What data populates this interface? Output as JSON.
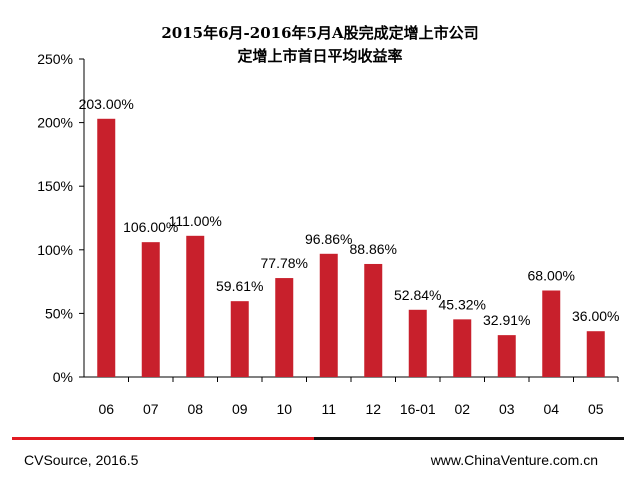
{
  "chart_data": {
    "type": "bar",
    "title": "2015年6月-2016年5月A股完成定增上市公司",
    "subtitle": "定增上市首日平均收益率",
    "categories": [
      "06",
      "07",
      "08",
      "09",
      "10",
      "11",
      "12",
      "16-01",
      "02",
      "03",
      "04",
      "05"
    ],
    "values": [
      203.0,
      106.0,
      111.0,
      59.61,
      77.78,
      96.86,
      88.86,
      52.84,
      45.32,
      32.91,
      68.0,
      36.0
    ],
    "data_labels": [
      "203.00%",
      "106.00%",
      "111.00%",
      "59.61%",
      "77.78%",
      "96.86%",
      "88.86%",
      "52.84%",
      "45.32%",
      "32.91%",
      "68.00%",
      "36.00%"
    ],
    "y_ticks": [
      0,
      50,
      100,
      150,
      200,
      250
    ],
    "y_tick_labels": [
      "0%",
      "50%",
      "100%",
      "150%",
      "200%",
      "250%"
    ],
    "ylim": [
      0,
      250
    ],
    "xlabel": "",
    "ylabel": "",
    "grid": false,
    "bar_color": "#c8202c"
  },
  "footer": {
    "source": "CVSource, 2016.5",
    "website": "www.ChinaVenture.com.cn"
  },
  "colors": {
    "footer_line_left": "#e21b22",
    "footer_line_right": "#111111"
  }
}
